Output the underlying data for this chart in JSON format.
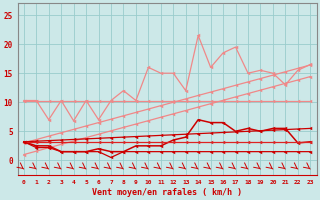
{
  "x": [
    0,
    1,
    2,
    3,
    4,
    5,
    6,
    7,
    8,
    9,
    10,
    11,
    12,
    13,
    14,
    15,
    16,
    17,
    18,
    19,
    20,
    21,
    22,
    23
  ],
  "line_flat_upper": [
    10.3,
    10.3,
    10.3,
    10.3,
    10.3,
    10.3,
    10.3,
    10.3,
    10.3,
    10.3,
    10.3,
    10.3,
    10.3,
    10.3,
    10.3,
    10.3,
    10.3,
    10.3,
    10.3,
    10.3,
    10.3,
    10.3,
    10.3,
    10.3
  ],
  "line_slope1": [
    3.0,
    3.58,
    4.17,
    4.75,
    5.33,
    5.92,
    6.5,
    7.08,
    7.67,
    8.25,
    8.83,
    9.42,
    10.0,
    10.58,
    11.17,
    11.75,
    12.33,
    12.92,
    13.5,
    14.08,
    14.67,
    15.25,
    15.83,
    16.42
  ],
  "line_slope2": [
    1.0,
    1.58,
    2.17,
    2.75,
    3.33,
    3.92,
    4.5,
    5.08,
    5.67,
    6.25,
    6.83,
    7.42,
    8.0,
    8.58,
    9.17,
    9.75,
    10.33,
    10.92,
    11.5,
    12.08,
    12.67,
    13.25,
    13.83,
    14.42
  ],
  "line_jagged_pink": [
    10.3,
    10.3,
    7.0,
    10.3,
    6.8,
    10.3,
    7.0,
    10.3,
    12.0,
    10.3,
    16.0,
    15.0,
    15.0,
    12.0,
    21.5,
    16.0,
    18.5,
    19.5,
    15.0,
    15.5,
    15.0,
    13.0,
    15.5,
    16.5
  ],
  "line_dark_jagged": [
    3.2,
    2.5,
    2.5,
    1.5,
    1.5,
    1.5,
    2.0,
    1.5,
    1.5,
    2.5,
    2.5,
    2.5,
    3.5,
    4.0,
    7.0,
    6.5,
    6.5,
    5.0,
    5.5,
    5.0,
    5.5,
    5.5,
    3.0,
    3.2
  ],
  "line_red_slope": [
    3.2,
    3.3,
    3.4,
    3.5,
    3.6,
    3.7,
    3.8,
    3.9,
    4.0,
    4.1,
    4.2,
    4.3,
    4.4,
    4.5,
    4.6,
    4.7,
    4.8,
    4.9,
    5.0,
    5.1,
    5.2,
    5.3,
    5.4,
    5.5
  ],
  "line_red_flat": [
    3.2,
    3.2,
    3.2,
    3.2,
    3.2,
    3.2,
    3.2,
    3.2,
    3.2,
    3.2,
    3.2,
    3.2,
    3.2,
    3.2,
    3.2,
    3.2,
    3.2,
    3.2,
    3.2,
    3.2,
    3.2,
    3.2,
    3.2,
    3.2
  ],
  "line_bottom_low": [
    3.2,
    2.2,
    2.2,
    1.5,
    1.5,
    1.5,
    1.5,
    0.5,
    1.5,
    1.5,
    1.5,
    1.5,
    1.5,
    1.5,
    1.5,
    1.5,
    1.5,
    1.5,
    1.5,
    1.5,
    1.5,
    1.5,
    1.5,
    1.5
  ],
  "bg_color": "#cce8e8",
  "grid_color": "#99cccc",
  "yticks": [
    0,
    5,
    10,
    15,
    20,
    25
  ],
  "xlabel": "Vent moyen/en rafales ( km/h )",
  "xlabel_color": "#cc0000",
  "ylim": [
    -2.5,
    27
  ],
  "xlim": [
    -0.5,
    23.5
  ],
  "color_light_pink": "#f08888",
  "color_dark_red": "#cc0000",
  "color_mid_red": "#dd2222"
}
